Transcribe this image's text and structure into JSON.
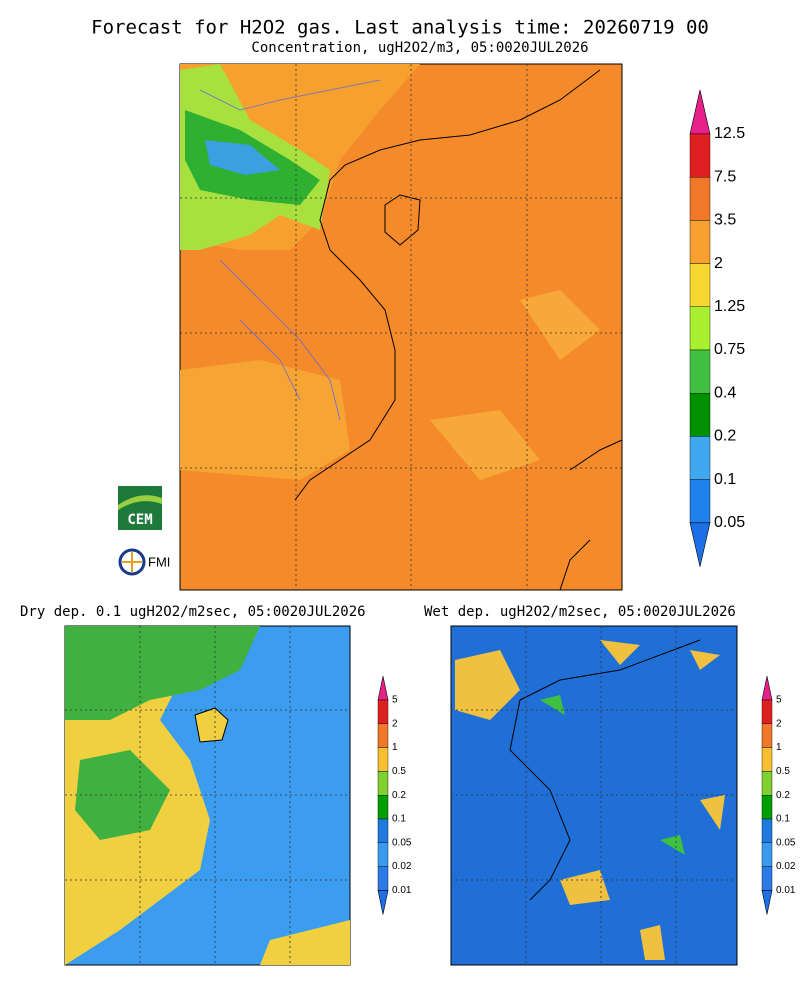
{
  "header": {
    "title": "Forecast for H2O2 gas. Last analysis time: 20260719 00",
    "subtitle": "Concentration, ugH2O2/m3, 05:0020JUL2026"
  },
  "main_panel": {
    "colorbar": {
      "labels": [
        "12.5",
        "7.5",
        "3.5",
        "2",
        "1.25",
        "0.75",
        "0.4",
        "0.2",
        "0.1",
        "0.05"
      ]
    }
  },
  "logos": {
    "cem": "CEM",
    "fmi": "FMI"
  },
  "dry_panel": {
    "title": "Dry dep. 0.1 ugH2O2/m2sec, 05:0020JUL2026",
    "colorbar": {
      "labels": [
        "5",
        "2",
        "1",
        "0.5",
        "0.2",
        "0.1",
        "0.05",
        "0.02",
        "0.01"
      ]
    }
  },
  "wet_panel": {
    "title": "Wet dep. ugH2O2/m2sec, 05:0020JUL2026",
    "colorbar": {
      "labels": [
        "5",
        "2",
        "1",
        "0.5",
        "0.2",
        "0.1",
        "0.05",
        "0.02",
        "0.01"
      ]
    }
  }
}
